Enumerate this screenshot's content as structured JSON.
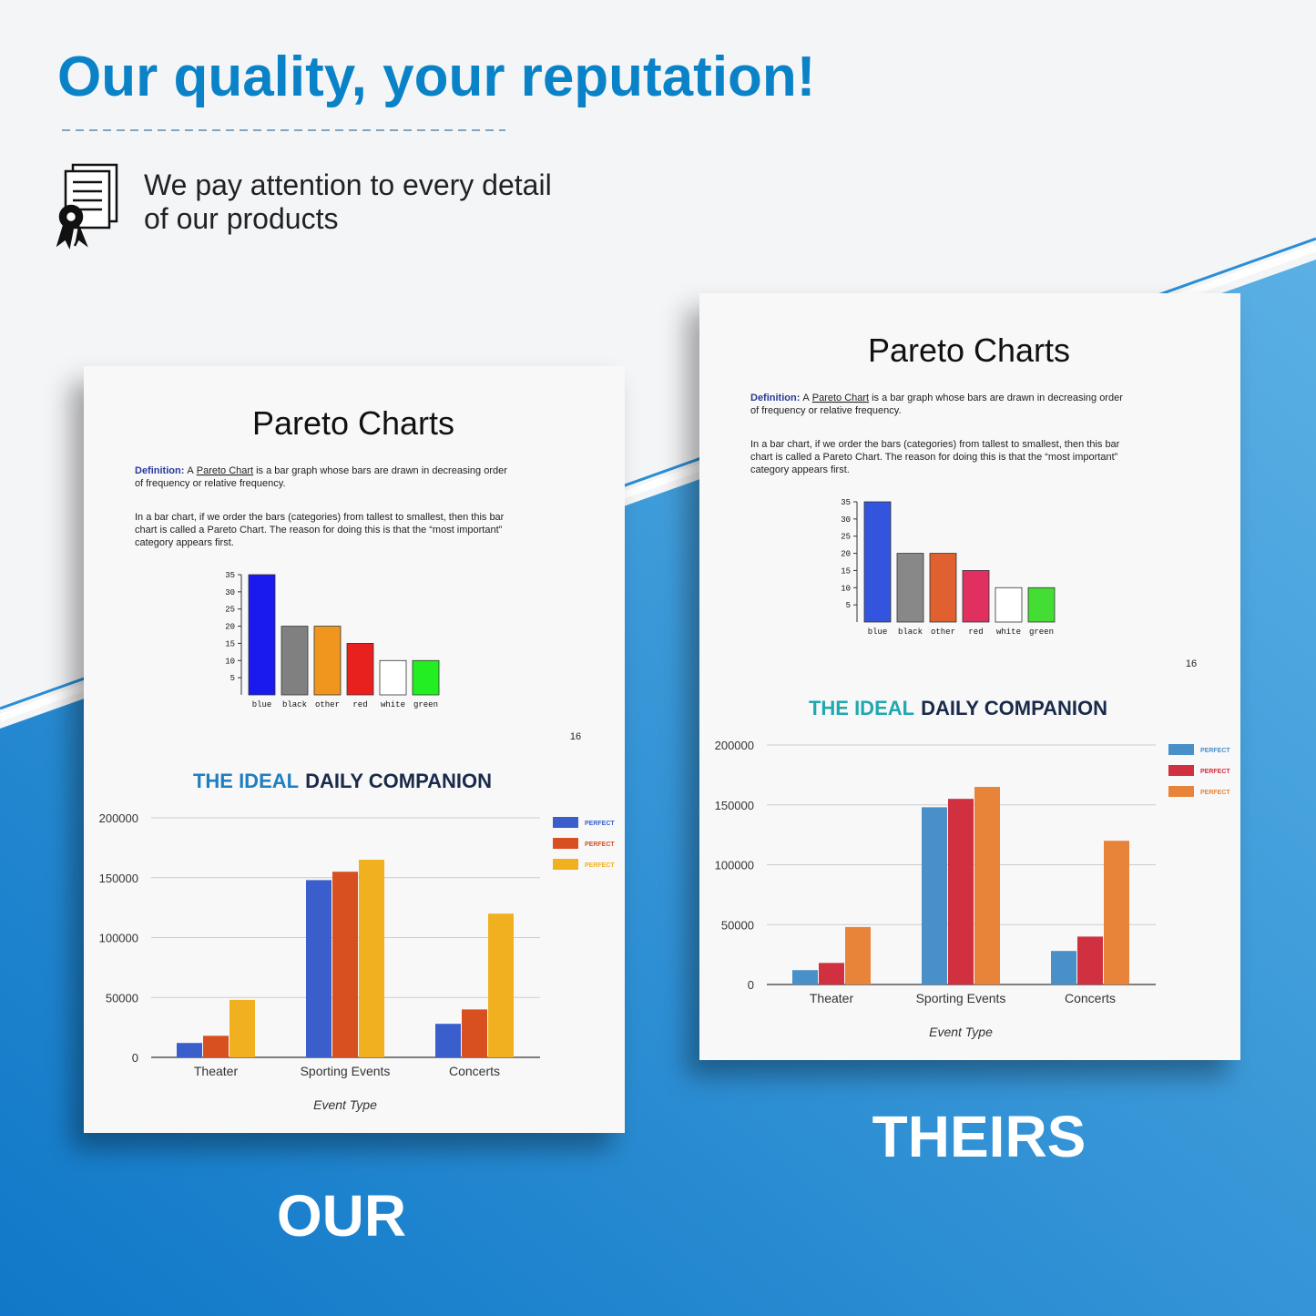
{
  "header": {
    "title": "Our quality, your reputation!",
    "tagline": [
      "We pay attention to every detail",
      "of our products"
    ]
  },
  "pages": [
    {
      "label": "OUR",
      "doc": {
        "title": "Pareto Charts",
        "definition": [
          "Definition:",
          "A",
          "Pareto Chart",
          "is a bar graph whose bars are drawn in decreasing order",
          "of frequency or relative frequency."
        ],
        "paragraph": [
          "In a bar chart, if we order the bars (categories) from tallest to smallest, then this bar",
          "chart is called a Pareto Chart.  The reason for doing this is that the “most important”",
          "category appears first."
        ],
        "page_number": "16",
        "pareto": {
          "type": "bar",
          "categories": [
            "blue",
            "black",
            "other",
            "red",
            "white",
            "green"
          ],
          "values": [
            35,
            20,
            20,
            15,
            10,
            10
          ],
          "colors": [
            "#1a1aee",
            "#808080",
            "#f0961e",
            "#e8201e",
            "#ffffff",
            "#22ee22"
          ],
          "ylim": [
            0,
            35
          ],
          "yticks": [
            5,
            10,
            15,
            20,
            25,
            30,
            35
          ]
        },
        "bar_chart": {
          "type": "bar",
          "title_parts": [
            "THE IDEAL",
            "DAILY COMPANION"
          ],
          "title_colors": [
            "#1e7fc0",
            "#1a2a4a"
          ],
          "categories": [
            "Theater",
            "Sporting Events",
            "Concerts"
          ],
          "x_label": "Event Type",
          "series": [
            {
              "name": "PERFECT",
              "color": "#3a5fcd",
              "values": [
                12000,
                148000,
                28000
              ]
            },
            {
              "name": "PERFECT",
              "color": "#d84f20",
              "values": [
                18000,
                155000,
                40000
              ]
            },
            {
              "name": "PERFECT",
              "color": "#f0b020",
              "values": [
                48000,
                165000,
                120000
              ]
            }
          ],
          "ylim": [
            0,
            200000
          ],
          "yticks": [
            0,
            50000,
            100000,
            150000,
            200000
          ],
          "grid": true
        }
      }
    },
    {
      "label": "THEIRS",
      "doc": {
        "title": "Pareto Charts",
        "definition": [
          "Definition:",
          "A",
          "Pareto Chart",
          "is a bar graph whose bars are drawn in decreasing order",
          "of frequency or relative frequency."
        ],
        "paragraph": [
          "In a bar chart, if we order the bars (categories) from tallest to smallest, then this bar",
          "chart is called a Pareto Chart.  The reason for doing this is that the “most important”",
          "category appears first."
        ],
        "page_number": "16",
        "pareto": {
          "type": "bar",
          "categories": [
            "blue",
            "black",
            "other",
            "red",
            "white",
            "green"
          ],
          "values": [
            35,
            20,
            20,
            15,
            10,
            10
          ],
          "colors": [
            "#3355dd",
            "#888888",
            "#e06030",
            "#e03060",
            "#ffffff",
            "#44dd33"
          ],
          "ylim": [
            0,
            35
          ],
          "yticks": [
            5,
            10,
            15,
            20,
            25,
            30,
            35
          ]
        },
        "bar_chart": {
          "type": "bar",
          "title_parts": [
            "THE IDEAL",
            "DAILY COMPANION"
          ],
          "title_colors": [
            "#20a8b0",
            "#1a2a4a"
          ],
          "categories": [
            "Theater",
            "Sporting Events",
            "Concerts"
          ],
          "x_label": "Event Type",
          "series": [
            {
              "name": "PERFECT",
              "color": "#4a90c8",
              "values": [
                12000,
                148000,
                28000
              ]
            },
            {
              "name": "PERFECT",
              "color": "#d03040",
              "values": [
                18000,
                155000,
                40000
              ]
            },
            {
              "name": "PERFECT",
              "color": "#e8843a",
              "values": [
                48000,
                165000,
                120000
              ]
            }
          ],
          "ylim": [
            0,
            200000
          ],
          "yticks": [
            0,
            50000,
            100000,
            150000,
            200000
          ],
          "grid": true
        }
      }
    }
  ]
}
